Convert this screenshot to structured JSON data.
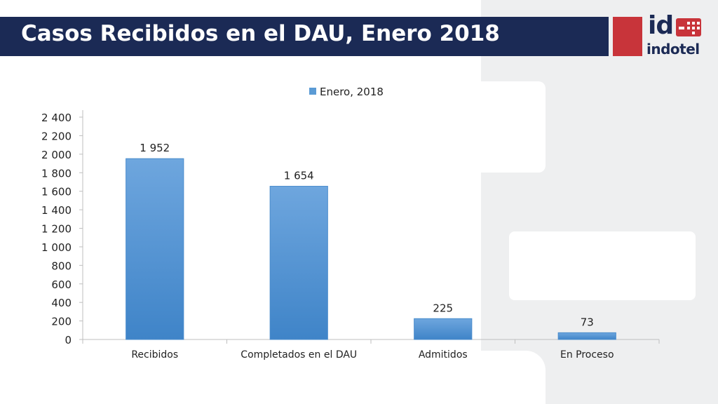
{
  "header": {
    "title": "Casos Recibidos en el DAU, Enero 2018"
  },
  "logo": {
    "mark": "id",
    "name": "indotel",
    "accent_color": "#c8343a",
    "brand_color": "#1b2a55"
  },
  "chart_data": {
    "type": "bar",
    "categories": [
      "Recibidos",
      "Completados en el DAU",
      "Admitidos",
      "En Proceso"
    ],
    "series": [
      {
        "name": "Enero, 2018",
        "values": [
          1952,
          1654,
          225,
          73
        ],
        "color": "#5b9bd5"
      }
    ],
    "data_labels": [
      "1 952",
      "1 654",
      "225",
      "73"
    ],
    "yticks": [
      0,
      200,
      400,
      600,
      800,
      1000,
      1200,
      1400,
      1600,
      1800,
      2000,
      2200,
      2400
    ],
    "ytick_labels": [
      "0",
      "200",
      "400",
      "600",
      "800",
      "1 000",
      "1 200",
      "1 400",
      "1 600",
      "1 800",
      "2 000",
      "2 200",
      "2 400"
    ],
    "ylim": [
      0,
      2400
    ],
    "grid": false,
    "legend_position": "top",
    "xlabel": "",
    "ylabel": ""
  }
}
